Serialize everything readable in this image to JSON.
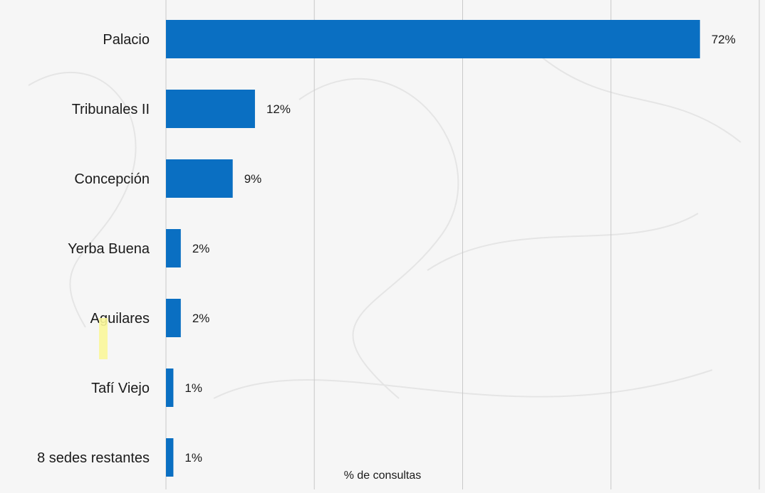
{
  "chart_data": {
    "type": "bar",
    "orientation": "horizontal",
    "categories": [
      "Palacio",
      "Tribunales II",
      "Concepción",
      "Yerba Buena",
      "Aguilares",
      "Tafí Viejo",
      "8 sedes restantes"
    ],
    "values": [
      72,
      12,
      9,
      2,
      2,
      1,
      1
    ],
    "data_labels": [
      "72%",
      "12%",
      "9%",
      "2%",
      "2%",
      "1%",
      "1%"
    ],
    "title": "",
    "xlabel": "% de consultas",
    "ylabel": "",
    "xlim": [
      0,
      80
    ],
    "grid": "vertical",
    "legend": "none"
  },
  "colors": {
    "bar": "#0a6fc2",
    "grid": "#c8c8c8",
    "text": "#1a1a1a",
    "background": "#f6f6f6",
    "highlight_mark": "#fbf79a"
  }
}
